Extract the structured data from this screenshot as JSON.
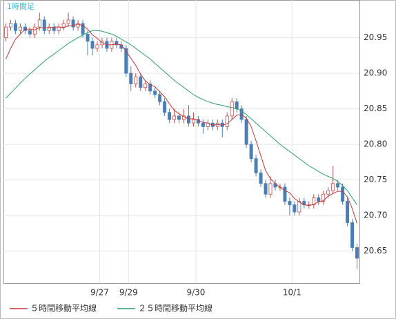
{
  "chart_data": {
    "type": "candlestick",
    "title": "1時間足",
    "xlim": [
      -0.5,
      73.5
    ],
    "xticks": [
      {
        "value": 19.5,
        "label": "9/27"
      },
      {
        "value": 25.5,
        "label": "9/29"
      },
      {
        "value": 39.5,
        "label": "9/30"
      },
      {
        "value": 59.5,
        "label": "10/1"
      }
    ],
    "ylim": [
      20.605,
      21.003
    ],
    "yticks": [
      20.65,
      {
        "value": 20.7,
        "label": "20.70"
      },
      20.75,
      {
        "value": 20.8,
        "label": "20.80"
      },
      20.85,
      {
        "value": 20.9,
        "label": "20.90"
      },
      20.95
    ],
    "grid": true,
    "up_color": "#c05050",
    "down_color": "#4a7fb5",
    "candles": {
      "open": [
        20.95,
        20.965,
        20.97,
        20.96,
        20.965,
        20.96,
        20.955,
        20.965,
        20.975,
        20.96,
        20.965,
        20.96,
        20.965,
        20.97,
        20.975,
        20.965,
        20.97,
        20.955,
        20.945,
        20.935,
        20.94,
        20.945,
        20.935,
        20.945,
        20.94,
        20.935,
        20.9,
        20.885,
        20.895,
        20.88,
        20.885,
        20.875,
        20.87,
        20.86,
        20.845,
        20.835,
        20.84,
        20.835,
        20.84,
        20.83,
        20.835,
        20.83,
        20.825,
        20.83,
        20.825,
        20.83,
        20.825,
        20.84,
        20.86,
        20.85,
        20.835,
        20.8,
        20.78,
        20.76,
        20.745,
        20.73,
        20.745,
        20.74,
        20.74,
        20.72,
        20.715,
        20.705,
        20.72,
        20.715,
        20.715,
        20.725,
        20.72,
        20.73,
        20.735,
        20.745,
        20.74,
        20.72,
        20.69,
        20.655
      ],
      "high": [
        20.97,
        20.975,
        20.975,
        20.97,
        20.97,
        20.965,
        20.97,
        20.985,
        20.98,
        20.97,
        20.97,
        20.97,
        20.975,
        20.985,
        20.98,
        20.975,
        20.975,
        20.96,
        20.95,
        20.945,
        20.95,
        20.95,
        20.95,
        20.95,
        20.945,
        20.94,
        20.91,
        20.9,
        20.9,
        20.89,
        20.89,
        20.88,
        20.875,
        20.865,
        20.85,
        20.85,
        20.845,
        20.85,
        20.855,
        20.845,
        20.84,
        20.835,
        20.835,
        20.835,
        20.835,
        20.835,
        20.845,
        20.865,
        20.865,
        20.855,
        20.84,
        20.805,
        20.785,
        20.765,
        20.75,
        20.755,
        20.75,
        20.745,
        20.745,
        20.725,
        20.72,
        20.725,
        20.725,
        20.72,
        20.73,
        20.73,
        20.735,
        20.74,
        20.77,
        20.75,
        20.745,
        20.725,
        20.695,
        20.66
      ],
      "low": [
        20.945,
        20.96,
        20.955,
        20.955,
        20.955,
        20.95,
        20.95,
        20.96,
        20.955,
        20.955,
        20.955,
        20.955,
        20.96,
        20.965,
        20.96,
        20.96,
        20.95,
        20.925,
        20.925,
        20.93,
        20.935,
        20.93,
        20.93,
        20.935,
        20.93,
        20.895,
        20.875,
        20.88,
        20.875,
        20.875,
        20.87,
        20.865,
        20.855,
        20.84,
        20.83,
        20.83,
        20.83,
        20.83,
        20.825,
        20.825,
        20.825,
        20.815,
        20.82,
        20.82,
        20.82,
        20.81,
        20.82,
        20.835,
        20.845,
        20.83,
        20.795,
        20.775,
        20.755,
        20.74,
        20.725,
        20.725,
        20.735,
        20.735,
        20.715,
        20.7,
        20.7,
        20.7,
        20.71,
        20.71,
        20.71,
        20.715,
        20.715,
        20.725,
        20.73,
        20.735,
        20.715,
        20.685,
        20.65,
        20.625
      ],
      "close": [
        20.965,
        20.97,
        20.96,
        20.965,
        20.96,
        20.955,
        20.965,
        20.975,
        20.96,
        20.965,
        20.96,
        20.965,
        20.97,
        20.975,
        20.965,
        20.97,
        20.955,
        20.945,
        20.935,
        20.94,
        20.945,
        20.935,
        20.945,
        20.94,
        20.935,
        20.9,
        20.885,
        20.895,
        20.88,
        20.885,
        20.875,
        20.87,
        20.86,
        20.845,
        20.835,
        20.84,
        20.835,
        20.84,
        20.83,
        20.835,
        20.83,
        20.825,
        20.83,
        20.825,
        20.83,
        20.825,
        20.84,
        20.86,
        20.85,
        20.835,
        20.8,
        20.78,
        20.76,
        20.745,
        20.73,
        20.745,
        20.74,
        20.74,
        20.72,
        20.715,
        20.705,
        20.72,
        20.715,
        20.715,
        20.725,
        20.72,
        20.73,
        20.735,
        20.745,
        20.74,
        20.72,
        20.69,
        20.655,
        20.64
      ]
    },
    "series": [
      {
        "name": "５時間移動平均線",
        "color": "#cc3333",
        "values": [
          20.92,
          20.935,
          20.948,
          20.955,
          20.962,
          20.962,
          20.961,
          20.964,
          20.964,
          20.964,
          20.965,
          20.965,
          20.964,
          20.967,
          20.967,
          20.969,
          20.967,
          20.962,
          20.954,
          20.949,
          20.943,
          20.94,
          20.94,
          20.941,
          20.94,
          20.931,
          20.921,
          20.911,
          20.899,
          20.889,
          20.884,
          20.881,
          20.874,
          20.867,
          20.857,
          20.848,
          20.843,
          20.839,
          20.836,
          20.836,
          20.834,
          20.831,
          20.83,
          20.827,
          20.828,
          20.827,
          20.829,
          20.835,
          20.841,
          20.842,
          20.837,
          20.825,
          20.805,
          20.784,
          20.763,
          20.752,
          20.745,
          20.74,
          20.735,
          20.732,
          20.724,
          20.719,
          20.715,
          20.714,
          20.716,
          20.719,
          20.721,
          20.727,
          20.731,
          20.734,
          20.734,
          20.726,
          20.71,
          20.689
        ]
      },
      {
        "name": "２５時間移動平均線",
        "color": "#2e9e6b",
        "values": [
          20.865,
          20.872,
          20.879,
          20.886,
          20.893,
          20.899,
          20.905,
          20.911,
          20.917,
          20.922,
          20.927,
          20.932,
          20.937,
          20.942,
          20.946,
          20.95,
          20.954,
          20.957,
          20.96,
          20.96,
          20.959,
          20.957,
          20.955,
          20.952,
          20.948,
          20.944,
          20.94,
          20.935,
          20.93,
          20.925,
          20.92,
          20.914,
          20.908,
          20.902,
          20.896,
          20.89,
          20.885,
          20.88,
          20.875,
          20.87,
          20.866,
          20.863,
          20.86,
          20.858,
          20.856,
          20.855,
          20.853,
          20.852,
          20.85,
          20.847,
          20.842,
          20.836,
          20.83,
          20.824,
          20.818,
          20.812,
          20.806,
          20.8,
          20.795,
          20.79,
          20.785,
          20.78,
          20.775,
          20.77,
          20.766,
          20.762,
          20.758,
          20.755,
          20.752,
          20.748,
          20.742,
          20.735,
          20.725,
          20.715
        ]
      }
    ]
  }
}
